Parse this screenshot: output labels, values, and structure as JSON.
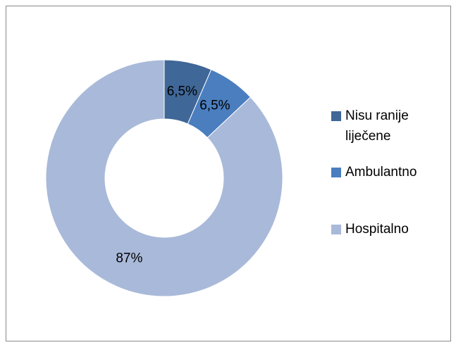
{
  "chart_data": {
    "type": "donut",
    "categories": [
      "Nisu ranije liječene",
      "Ambulantno",
      "Hospitalno"
    ],
    "values": [
      6.5,
      6.5,
      87
    ],
    "value_labels": [
      "6,5%",
      "6,5%",
      "87%"
    ],
    "colors": [
      "#3f6797",
      "#4a7ebf",
      "#a9b9d9"
    ],
    "legend": "right"
  }
}
